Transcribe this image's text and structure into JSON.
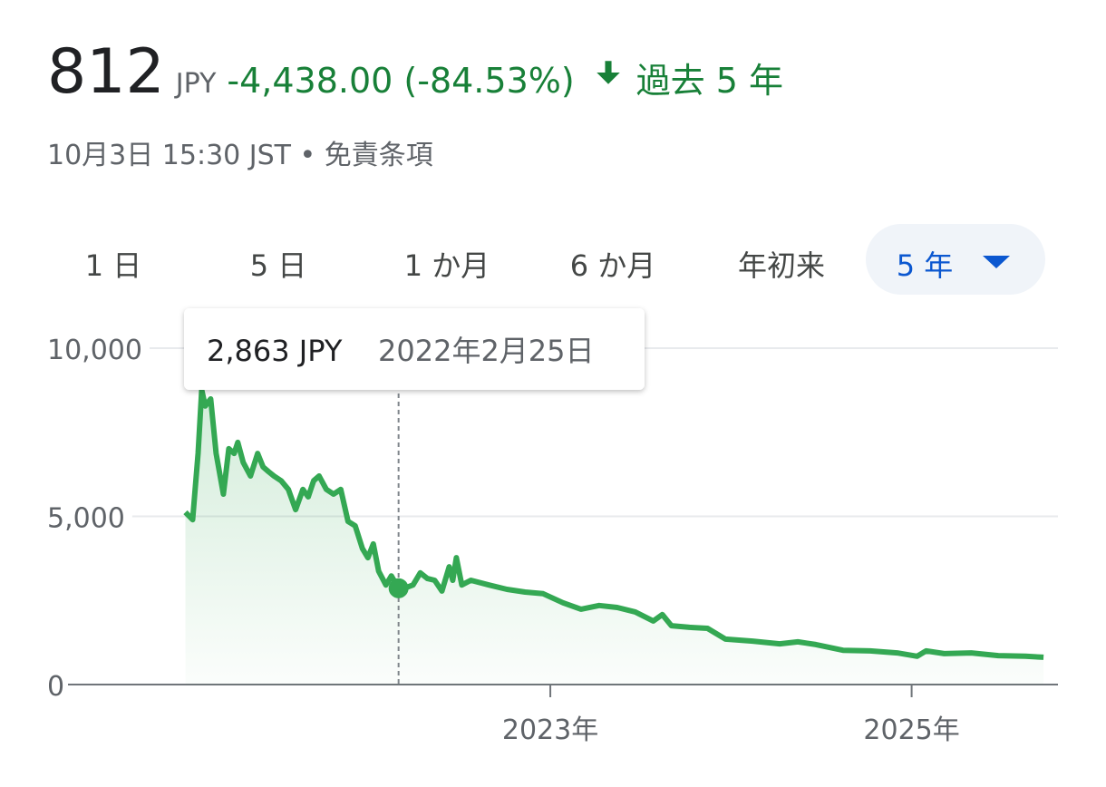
{
  "header": {
    "price": "812",
    "currency": "JPY",
    "change": "-4,438.00 (-84.53%)",
    "period": "過去 5 年",
    "timestamp": "10月3日 15:30 JST",
    "disclaimer": "免責条項"
  },
  "tabs": {
    "items": [
      "1 日",
      "5 日",
      "1 か月",
      "6 か月",
      "年初来",
      "5 年"
    ],
    "selected": 5
  },
  "chart_data": {
    "type": "line",
    "color": "#34a853",
    "grid": true,
    "xlim": [
      2020.33,
      2025.81
    ],
    "ylim": [
      0,
      10000
    ],
    "xticks": [
      {
        "value": 2023,
        "label": "2023年"
      },
      {
        "value": 2025,
        "label": "2025年"
      }
    ],
    "yticks": [
      0,
      {
        "value": 5000,
        "label": "5,000"
      },
      {
        "value": 10000,
        "label": "10,000"
      }
    ],
    "x": [
      2020.98,
      2021.02,
      2021.05,
      2021.07,
      2021.09,
      2021.12,
      2021.15,
      2021.19,
      2021.22,
      2021.25,
      2021.27,
      2021.3,
      2021.34,
      2021.38,
      2021.41,
      2021.44,
      2021.47,
      2021.51,
      2021.55,
      2021.59,
      2021.63,
      2021.66,
      2021.69,
      2021.72,
      2021.76,
      2021.8,
      2021.84,
      2021.88,
      2021.92,
      2021.96,
      2021.99,
      2022.02,
      2022.05,
      2022.09,
      2022.12,
      2022.16,
      2022.2,
      2022.24,
      2022.28,
      2022.32,
      2022.36,
      2022.4,
      2022.44,
      2022.46,
      2022.48,
      2022.51,
      2022.56,
      2022.66,
      2022.76,
      2022.86,
      2022.96,
      2023.07,
      2023.17,
      2023.27,
      2023.37,
      2023.47,
      2023.57,
      2023.62,
      2023.67,
      2023.77,
      2023.87,
      2023.97,
      2024.12,
      2024.27,
      2024.37,
      2024.47,
      2024.62,
      2024.77,
      2024.92,
      2025.03,
      2025.08,
      2025.18,
      2025.33,
      2025.48,
      2025.63,
      2025.73
    ],
    "values": [
      5120,
      4900,
      6870,
      8760,
      8280,
      8490,
      6870,
      5660,
      7010,
      6870,
      7200,
      6600,
      6200,
      6870,
      6470,
      6330,
      6200,
      6060,
      5800,
      5200,
      5800,
      5580,
      6060,
      6200,
      5800,
      5660,
      5800,
      4850,
      4720,
      4040,
      3770,
      4180,
      3370,
      2960,
      3230,
      2863,
      2880,
      2960,
      3320,
      3150,
      3100,
      2780,
      3500,
      3100,
      3770,
      2960,
      3100,
      2960,
      2830,
      2750,
      2700,
      2430,
      2240,
      2350,
      2290,
      2160,
      1890,
      2080,
      1750,
      1700,
      1670,
      1350,
      1290,
      1210,
      1270,
      1190,
      1020,
      1000,
      940,
      840,
      1000,
      920,
      940,
      860,
      840,
      812
    ],
    "tooltip": {
      "x": 2022.16,
      "value": 2863,
      "value_label": "2,863 JPY",
      "date_label": "2022年2月25日"
    }
  }
}
